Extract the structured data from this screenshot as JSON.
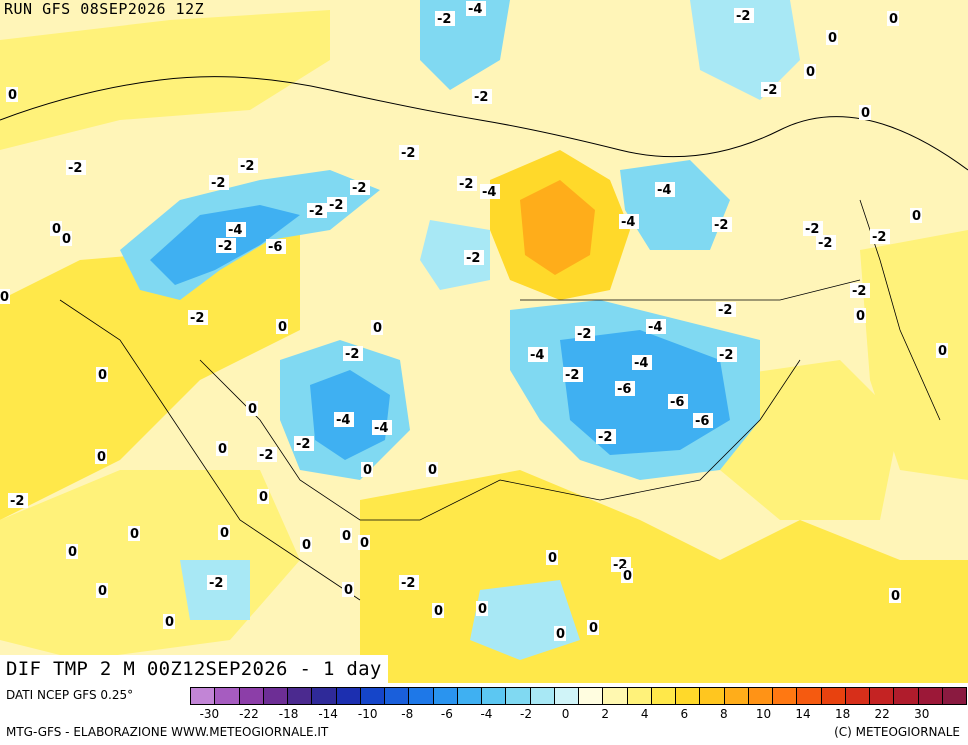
{
  "header": {
    "run_title": "RUN GFS 08SEP2026 12Z"
  },
  "map": {
    "title": "DIF TMP 2 M 00Z12SEP2026 - 1 day",
    "labels": [
      {
        "text": "-2"
      },
      {
        "text": "-4"
      },
      {
        "text": "-2"
      },
      {
        "text": "0"
      },
      {
        "text": "0"
      },
      {
        "text": "0"
      },
      {
        "text": "0"
      },
      {
        "text": "-2"
      },
      {
        "text": "-2"
      },
      {
        "text": "0"
      },
      {
        "text": "-2"
      },
      {
        "text": "-2"
      },
      {
        "text": "-2"
      },
      {
        "text": "-2"
      },
      {
        "text": "-2"
      },
      {
        "text": "-4"
      },
      {
        "text": "-2"
      },
      {
        "text": "-4"
      },
      {
        "text": "-4"
      },
      {
        "text": "-2"
      },
      {
        "text": "-4"
      },
      {
        "text": "-2"
      },
      {
        "text": "0"
      },
      {
        "text": "0"
      },
      {
        "text": "-2"
      },
      {
        "text": "-2"
      },
      {
        "text": "-2"
      },
      {
        "text": "-6"
      },
      {
        "text": "-2"
      },
      {
        "text": "-2"
      },
      {
        "text": "-2"
      },
      {
        "text": "0"
      },
      {
        "text": "0"
      },
      {
        "text": "0"
      },
      {
        "text": "0"
      },
      {
        "text": "-2"
      },
      {
        "text": "-2"
      },
      {
        "text": "-2"
      },
      {
        "text": "-4"
      },
      {
        "text": "-2"
      },
      {
        "text": "-4"
      },
      {
        "text": "-4"
      },
      {
        "text": "-2"
      },
      {
        "text": "-6"
      },
      {
        "text": "-6"
      },
      {
        "text": "0"
      },
      {
        "text": "-4"
      },
      {
        "text": "-4"
      },
      {
        "text": "-6"
      },
      {
        "text": "-2"
      },
      {
        "text": "0"
      },
      {
        "text": "-2"
      },
      {
        "text": "-2"
      },
      {
        "text": "0"
      },
      {
        "text": "0"
      },
      {
        "text": "-2"
      },
      {
        "text": "0"
      },
      {
        "text": "-2"
      },
      {
        "text": "0"
      },
      {
        "text": "0"
      },
      {
        "text": "0"
      },
      {
        "text": "-2"
      },
      {
        "text": "0"
      },
      {
        "text": "0"
      },
      {
        "text": "0"
      },
      {
        "text": "0"
      },
      {
        "text": "0"
      },
      {
        "text": "0"
      },
      {
        "text": "-2"
      },
      {
        "text": "0"
      },
      {
        "text": "-2"
      },
      {
        "text": "0"
      },
      {
        "text": "0"
      },
      {
        "text": "-2"
      },
      {
        "text": "0"
      },
      {
        "text": "0"
      },
      {
        "text": "0"
      },
      {
        "text": "0"
      },
      {
        "text": "0"
      },
      {
        "text": "0"
      },
      {
        "text": "0"
      },
      {
        "text": "0"
      }
    ]
  },
  "legend": {
    "data_source": "DATI NCEP GFS 0.25°",
    "ticks": [
      "-30",
      "-22",
      "-18",
      "-14",
      "-10",
      "-8",
      "-6",
      "-4",
      "-2",
      "0",
      "2",
      "4",
      "6",
      "8",
      "10",
      "14",
      "18",
      "22",
      "30"
    ],
    "colors": [
      "#c285d6",
      "#a65cc0",
      "#8c3ea8",
      "#6d2e95",
      "#4b2a8f",
      "#2f2a99",
      "#1c2fb0",
      "#1545c9",
      "#1a5fdb",
      "#1e78e8",
      "#2a94ef",
      "#3fb0f2",
      "#5cc7f2",
      "#80d9f2",
      "#a8e8f5",
      "#d0f4f8",
      "#fffde0",
      "#fff8b0",
      "#fff27a",
      "#ffe84a",
      "#ffd92a",
      "#ffc61f",
      "#ffad1a",
      "#ff9316",
      "#ff7812",
      "#f55a10",
      "#e8420f",
      "#d72f1a",
      "#c42323",
      "#b01c2c",
      "#9c1838",
      "#8a1a40"
    ]
  },
  "footer": {
    "credit_left": "MTG-GFS - ELABORAZIONE WWW.METEOGIORNALE.IT",
    "credit_right": "(C) METEOGIORNALE"
  }
}
